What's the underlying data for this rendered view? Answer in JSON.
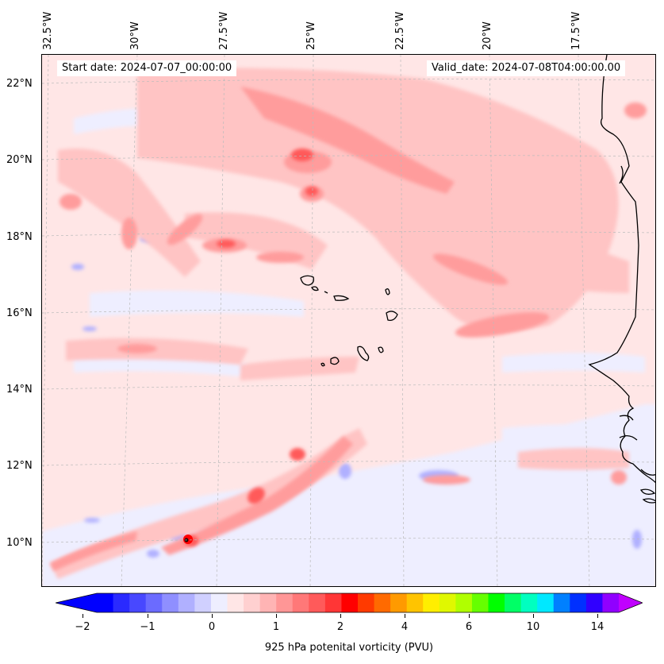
{
  "header": {
    "start_date": "Start date: 2024-07-07_00:00:00",
    "valid_date": "Valid_date: 2024-07-08T04:00:00.00"
  },
  "map": {
    "longitude_labels": [
      "32.5°W",
      "30°W",
      "27.5°W",
      "25°W",
      "22.5°W",
      "20°W",
      "17.5°W"
    ],
    "latitude_labels": [
      "22°N",
      "20°N",
      "18°N",
      "16°N",
      "14°N",
      "12°N",
      "10°N"
    ],
    "colors": {
      "background_pv": "#ffe6e6",
      "light_red": "#ffc4c4",
      "mid_red": "#ff9c9c",
      "strong_red": "#ff5a5a",
      "max_red": "#ff0000",
      "light_blue": "#eeeeff",
      "mid_blue": "#b0b0ff",
      "coast": "#000000"
    }
  },
  "colorbar": {
    "tick_labels": [
      "−2",
      "−1",
      "0",
      "1",
      "2",
      "4",
      "6",
      "10",
      "14"
    ],
    "label": "925 hPa potenital vorticity (PVU)",
    "colors": [
      "#0000ff",
      "#2a2aff",
      "#4848ff",
      "#6b6bff",
      "#8f8fff",
      "#b0b0ff",
      "#d0d0ff",
      "#eeeeff",
      "#ffe6e6",
      "#ffd0d0",
      "#ffb4b4",
      "#ff9696",
      "#ff7878",
      "#ff5a5a",
      "#ff3636",
      "#ff0000",
      "#ff3a00",
      "#ff6a00",
      "#ff9a00",
      "#ffc400",
      "#ffee00",
      "#e0f800",
      "#b0ff00",
      "#66ff00",
      "#00ff00",
      "#00ff66",
      "#00ffc0",
      "#00e8ff",
      "#0080ff",
      "#0030ff",
      "#3000ff",
      "#9000ff"
    ],
    "extend_min_color": "#0000ff",
    "extend_max_color": "#c000ff"
  }
}
